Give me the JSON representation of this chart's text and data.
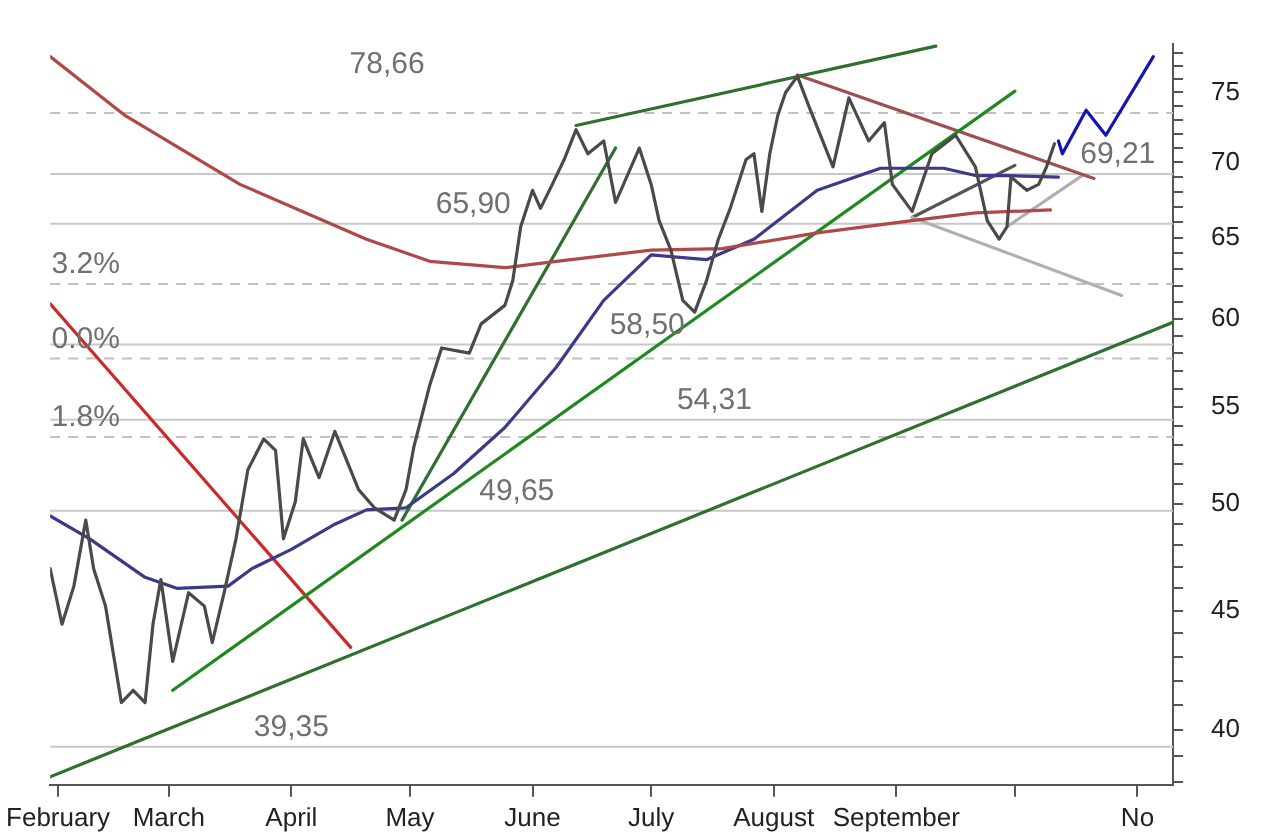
{
  "chart_data": {
    "type": "line",
    "log": "y",
    "legend": false,
    "grid": false,
    "marker": "none",
    "xlim": [
      "--01-30",
      "--11-10"
    ],
    "xticks": [
      {
        "value": "--02-01",
        "label": "February"
      },
      {
        "value": "--03-01",
        "label": "March"
      },
      {
        "value": "--04-01",
        "label": "April"
      },
      {
        "value": "--05-01",
        "label": "May"
      },
      {
        "value": "--06-01",
        "label": "June"
      },
      {
        "value": "--07-01",
        "label": "July"
      },
      {
        "value": "--08-01",
        "label": "August"
      },
      {
        "value": "--09-01",
        "label": "September"
      },
      {
        "value": "--10-01",
        "label": null
      },
      {
        "value": "--11-01",
        "label": "No"
      }
    ],
    "ylim": [
      37.9,
      78.7
    ],
    "yticks": [
      {
        "value": 38,
        "label": null
      },
      {
        "value": 39,
        "label": null
      },
      40,
      {
        "value": 41,
        "label": null
      },
      {
        "value": 42,
        "label": null
      },
      {
        "value": 43,
        "label": null
      },
      {
        "value": 44,
        "label": null
      },
      45,
      {
        "value": 46,
        "label": null
      },
      {
        "value": 47,
        "label": null
      },
      {
        "value": 48,
        "label": null
      },
      {
        "value": 49,
        "label": null
      },
      50,
      {
        "value": 51,
        "label": null
      },
      {
        "value": 52,
        "label": null
      },
      {
        "value": 53,
        "label": null
      },
      {
        "value": 54,
        "label": null
      },
      55,
      {
        "value": 56,
        "label": null
      },
      {
        "value": 57,
        "label": null
      },
      {
        "value": 58,
        "label": null
      },
      {
        "value": 59,
        "label": null
      },
      60,
      {
        "value": 61,
        "label": null
      },
      {
        "value": 62,
        "label": null
      },
      {
        "value": 63,
        "label": null
      },
      {
        "value": 64,
        "label": null
      },
      65,
      {
        "value": 66,
        "label": null
      },
      {
        "value": 67,
        "label": null
      },
      {
        "value": 68,
        "label": null
      },
      {
        "value": 69,
        "label": null
      },
      70,
      {
        "value": 71,
        "label": null
      },
      {
        "value": 72,
        "label": null
      },
      {
        "value": 73,
        "label": null
      },
      {
        "value": 74,
        "label": null
      },
      75,
      {
        "value": 76,
        "label": null
      },
      {
        "value": 77,
        "label": null
      },
      {
        "value": 78,
        "label": null
      }
    ],
    "series": [
      {
        "color": "#4a4a4a",
        "x": [
          "--01-30",
          "--02-02",
          "--02-05",
          "--02-08",
          "--02-10",
          "--02-13",
          "--02-17",
          "--02-20",
          "--02-23",
          "--02-25",
          "--02-27",
          "--03-02",
          "--03-06",
          "--03-10",
          "--03-12",
          "--03-15",
          "--03-18",
          "--03-21",
          "--03-25",
          "--03-28",
          "--03-30",
          "--04-02",
          "--04-04",
          "--04-08",
          "--04-12",
          "--04-18",
          "--04-22",
          "--04-27",
          "--04-30",
          "--05-02",
          "--05-06",
          "--05-09",
          "--05-16",
          "--05-19",
          "--05-25",
          "--05-27",
          "--05-29",
          "--06-01",
          "--06-03",
          "--06-06",
          "--06-09",
          "--06-12",
          "--06-15",
          "--06-19",
          "--06-22",
          "--06-24",
          "--06-28",
          "--07-01",
          "--07-03",
          "--07-06",
          "--07-09",
          "--07-12",
          "--07-15",
          "--07-18",
          "--07-21",
          "--07-25",
          "--07-27",
          "--07-29",
          "--07-31",
          "--08-02",
          "--08-04",
          "--08-07",
          "--08-10",
          "--08-16",
          "--08-20",
          "--08-25",
          "--08-29",
          "--08-31",
          "--09-05",
          "--09-10",
          "--09-16",
          "--09-21",
          "--09-24",
          "--09-27",
          "--09-29",
          "--09-30",
          "--10-04",
          "--10-07",
          "--10-09",
          "--10-11"
        ],
        "values": [
          46.9,
          44.4,
          46.1,
          49.2,
          46.9,
          45.2,
          41.1,
          41.6,
          41.1,
          44.4,
          46.4,
          42.8,
          45.8,
          45.2,
          43.6,
          45.8,
          48.3,
          51.7,
          53.3,
          52.7,
          48.3,
          50.1,
          53.3,
          51.3,
          53.7,
          50.7,
          49.8,
          49.2,
          50.7,
          52.9,
          56.2,
          58.3,
          58.0,
          59.7,
          60.8,
          62.3,
          65.7,
          68.1,
          66.9,
          68.5,
          70.2,
          72.3,
          70.6,
          71.5,
          67.3,
          68.5,
          71.0,
          68.5,
          66.1,
          64.2,
          61.1,
          60.4,
          62.3,
          64.9,
          66.9,
          70.2,
          70.6,
          66.7,
          70.6,
          73.3,
          75.0,
          76.2,
          73.9,
          69.7,
          74.6,
          71.5,
          72.8,
          68.5,
          66.7,
          70.6,
          71.9,
          69.7,
          66.1,
          64.9,
          65.7,
          69.0,
          68.1,
          68.5,
          69.7,
          71.3
        ]
      },
      {
        "color": "#1414b4",
        "x": [
          "--10-12",
          "--10-13",
          "--10-19",
          "--10-24",
          "--11-05"
        ],
        "values": [
          71.5,
          70.6,
          73.7,
          71.9,
          77.7
        ]
      },
      {
        "color": "#b04848",
        "x": [
          "--01-30",
          "--02-18",
          "--03-19",
          "--04-20",
          "--05-06",
          "--05-25",
          "--06-07",
          "--07-01",
          "--07-19",
          "--08-12",
          "--09-05",
          "--09-21",
          "--10-10"
        ],
        "values": [
          77.7,
          73.3,
          68.5,
          64.9,
          63.5,
          63.1,
          63.5,
          64.2,
          64.3,
          65.3,
          66.1,
          66.6,
          66.8
        ]
      },
      {
        "color": "#3a3a8a",
        "x": [
          "--01-30",
          "--02-09",
          "--02-23",
          "--03-03",
          "--03-16",
          "--03-22",
          "--04-01",
          "--04-12",
          "--04-20",
          "--04-30",
          "--05-12",
          "--05-25",
          "--06-07",
          "--06-19",
          "--07-01",
          "--07-15",
          "--07-27",
          "--08-12",
          "--08-28",
          "--09-13",
          "--09-21",
          "--09-29",
          "--10-12"
        ],
        "values": [
          49.4,
          48.3,
          46.5,
          46.0,
          46.1,
          46.9,
          47.8,
          49.0,
          49.7,
          49.8,
          51.5,
          53.9,
          57.2,
          61.1,
          63.9,
          63.6,
          64.9,
          68.1,
          69.6,
          69.6,
          69.1,
          69.1,
          69.0
        ]
      },
      {
        "color": "#1e8a1e",
        "x": [
          "--03-02",
          "--10-01"
        ],
        "values": [
          41.6,
          75.1
        ]
      },
      {
        "color": "#2f6f2f",
        "x": [
          "--01-30",
          "--11-10"
        ],
        "values": [
          38.2,
          59.8
        ]
      },
      {
        "color": "#2f6f2f",
        "x": [
          "--06-12",
          "--09-11"
        ],
        "values": [
          72.6,
          78.5
        ]
      },
      {
        "color": "#cc2a2a",
        "x": [
          "--01-30",
          "--04-16"
        ],
        "values": [
          60.9,
          43.4
        ]
      },
      {
        "color": "#2f6f2f",
        "x": [
          "--04-29",
          "--06-22"
        ],
        "values": [
          49.2,
          71.0
        ]
      },
      {
        "color": "#a05050",
        "x": [
          "--08-07",
          "--10-21"
        ],
        "values": [
          76.3,
          68.9
        ]
      },
      {
        "color": "#b0b0b0",
        "x": [
          "--09-05",
          "--10-28"
        ],
        "values": [
          66.3,
          61.4
        ]
      },
      {
        "color": "#555555",
        "x": [
          "--09-05",
          "--10-01"
        ],
        "values": [
          66.3,
          69.8
        ]
      },
      {
        "color": "#b0b0b0",
        "x": [
          "--09-29",
          "--10-18"
        ],
        "values": [
          65.7,
          69.1
        ]
      }
    ],
    "ref_lines": [
      {
        "axis": "y",
        "value": 73.5,
        "line_style": "dashed",
        "color": "#c0c0c0"
      },
      {
        "axis": "y",
        "value": 62.1,
        "line_style": "dashed",
        "color": "#c0c0c0"
      },
      {
        "axis": "y",
        "value": 57.7,
        "line_style": "dashed",
        "color": "#c0c0c0"
      },
      {
        "axis": "y",
        "value": 53.4,
        "line_style": "dashed",
        "color": "#c0c0c0"
      },
      {
        "axis": "y",
        "value": 65.9,
        "color": "#c8c8c8"
      },
      {
        "axis": "y",
        "value": 58.5,
        "color": "#c8c8c8"
      },
      {
        "axis": "y",
        "value": 54.31,
        "color": "#c8c8c8"
      },
      {
        "axis": "y",
        "value": 49.65,
        "color": "#c8c8c8"
      },
      {
        "axis": "y",
        "value": 39.35,
        "color": "#c8c8c8"
      },
      {
        "axis": "y",
        "value": 69.21,
        "color": "#c8c8c8"
      }
    ],
    "annotations": [
      "78,66",
      {
        "text": "3.2%",
        "x": "--02-08",
        "y": 62.1
      },
      {
        "text": "0.0%",
        "x": "--02-08",
        "y": 57.7
      },
      {
        "text": "1.8%",
        "x": "--02-08",
        "y": 53.4
      },
      {
        "text": "65,90",
        "x": "--05-17",
        "y": 65.9
      },
      {
        "text": "58,50",
        "x": "--06-30",
        "y": 58.5
      },
      {
        "text": "54,31",
        "x": "--07-17",
        "y": 54.31
      },
      {
        "text": "49,65",
        "x": "--05-28",
        "y": 49.65
      },
      {
        "text": "39,35",
        "x": "--04-01",
        "y": 39.35
      },
      {
        "text": "69,21",
        "x": "--10-27",
        "y": 69.21
      }
    ]
  }
}
